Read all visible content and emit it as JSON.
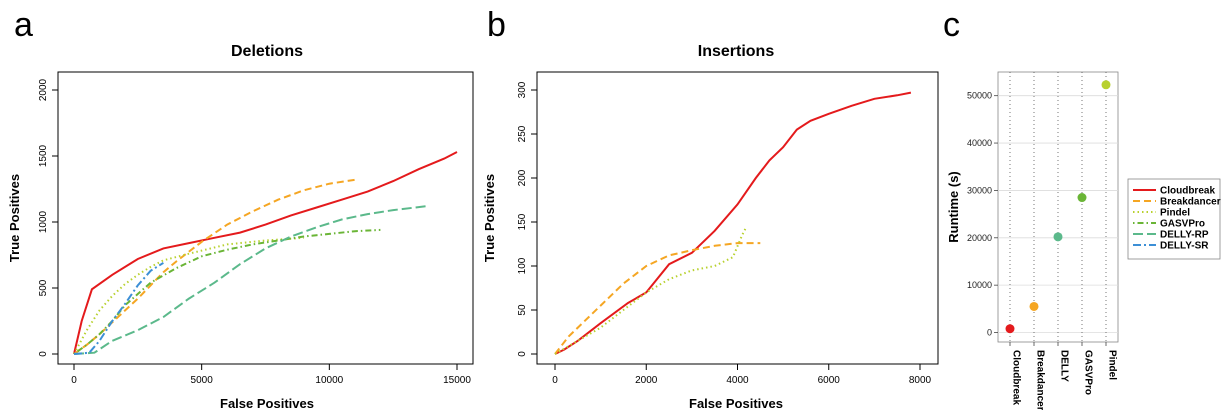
{
  "panels": {
    "a": "a",
    "b": "b",
    "c": "c"
  },
  "legend": {
    "entries": [
      {
        "name": "Cloudbreak",
        "color": "#e41a1c",
        "dash": "solid"
      },
      {
        "name": "Breakdancer",
        "color": "#f5a623",
        "dash": "dashed"
      },
      {
        "name": "Pindel",
        "color": "#b8d12e",
        "dash": "dotted"
      },
      {
        "name": "GASVPro",
        "color": "#6ab536",
        "dash": "dotdash"
      },
      {
        "name": "DELLY-RP",
        "color": "#5bb98b",
        "dash": "longdash"
      },
      {
        "name": "DELLY-SR",
        "color": "#3c8fd6",
        "dash": "twodash"
      }
    ]
  },
  "chart_data": [
    {
      "type": "line",
      "title": "Deletions",
      "xlabel": "False Positives",
      "ylabel": "True Positives",
      "xlim": [
        0,
        15000
      ],
      "ylim": [
        0,
        2000
      ],
      "xticks": [
        0,
        5000,
        10000,
        15000
      ],
      "yticks": [
        0,
        500,
        1000,
        1500,
        2000
      ],
      "series": [
        {
          "name": "Cloudbreak",
          "x": [
            0,
            300,
            700,
            1500,
            2500,
            3500,
            4500,
            5500,
            6500,
            7500,
            8500,
            9500,
            10500,
            11500,
            12500,
            13500,
            14500,
            15000
          ],
          "y": [
            0,
            250,
            490,
            600,
            720,
            800,
            840,
            880,
            920,
            980,
            1050,
            1110,
            1170,
            1230,
            1310,
            1400,
            1480,
            1530
          ]
        },
        {
          "name": "Breakdancer",
          "x": [
            0,
            500,
            1000,
            1500,
            2000,
            2500,
            3000,
            3500,
            4000,
            5000,
            6000,
            7000,
            8000,
            9000,
            10000,
            11000
          ],
          "y": [
            0,
            70,
            150,
            240,
            330,
            420,
            520,
            620,
            700,
            850,
            980,
            1080,
            1170,
            1240,
            1290,
            1320
          ]
        },
        {
          "name": "Pindel",
          "x": [
            0,
            500,
            1000,
            1500,
            2000,
            2500,
            3000,
            3500,
            4500,
            6000,
            7500,
            9000
          ],
          "y": [
            0,
            180,
            330,
            440,
            530,
            600,
            660,
            710,
            760,
            830,
            860,
            880
          ]
        },
        {
          "name": "GASVPro",
          "x": [
            0,
            500,
            1000,
            1500,
            2000,
            3000,
            4000,
            5000,
            6000,
            7000,
            8000,
            9000,
            10000,
            11000,
            12000
          ],
          "y": [
            0,
            70,
            150,
            250,
            370,
            540,
            650,
            740,
            790,
            830,
            860,
            890,
            910,
            930,
            940
          ]
        },
        {
          "name": "DELLY-RP",
          "x": [
            0,
            800,
            1500,
            2500,
            3500,
            4500,
            5500,
            6500,
            7500,
            8500,
            9500,
            10500,
            11500,
            12500,
            13800
          ],
          "y": [
            0,
            10,
            100,
            180,
            280,
            420,
            540,
            680,
            800,
            890,
            960,
            1020,
            1060,
            1090,
            1120
          ]
        },
        {
          "name": "DELLY-SR",
          "x": [
            0,
            600,
            1000,
            1500,
            2000,
            2500,
            3000,
            3500
          ],
          "y": [
            0,
            10,
            100,
            250,
            380,
            520,
            630,
            690
          ]
        }
      ]
    },
    {
      "type": "line",
      "title": "Insertions",
      "xlabel": "False Positives",
      "ylabel": "True Positives",
      "xlim": [
        0,
        8000
      ],
      "ylim": [
        0,
        300
      ],
      "xticks": [
        0,
        2000,
        4000,
        6000,
        8000
      ],
      "yticks": [
        0,
        50,
        100,
        150,
        200,
        250,
        300
      ],
      "series": [
        {
          "name": "Cloudbreak",
          "x": [
            0,
            200,
            500,
            1000,
            1600,
            2000,
            2500,
            3000,
            3500,
            4000,
            4400,
            4700,
            5000,
            5300,
            5600,
            6000,
            6500,
            7000,
            7500,
            7800
          ],
          "y": [
            0,
            5,
            15,
            35,
            58,
            70,
            102,
            115,
            140,
            170,
            200,
            220,
            235,
            255,
            265,
            273,
            282,
            290,
            294,
            297
          ]
        },
        {
          "name": "Breakdancer",
          "x": [
            0,
            300,
            600,
            1000,
            1500,
            2000,
            2500,
            3000,
            3500,
            4000,
            4500
          ],
          "y": [
            0,
            20,
            35,
            55,
            80,
            100,
            112,
            118,
            123,
            126,
            126
          ]
        },
        {
          "name": "Pindel",
          "x": [
            0,
            500,
            1000,
            1500,
            2000,
            2500,
            3000,
            3500,
            3900,
            4100,
            4200
          ],
          "y": [
            0,
            15,
            30,
            50,
            70,
            85,
            95,
            100,
            110,
            135,
            145
          ]
        }
      ]
    },
    {
      "type": "scatter",
      "title": "",
      "xlabel": "",
      "ylabel": "Runtime (s)",
      "ylim": [
        -2000,
        55000
      ],
      "yticks": [
        0,
        10000,
        20000,
        30000,
        40000,
        50000
      ],
      "categories": [
        "Cloudbreak",
        "Breakdancer",
        "DELLY",
        "GASVPro",
        "Pindel"
      ],
      "values": [
        800,
        5500,
        20200,
        28500,
        52300
      ],
      "colors": [
        "#e41a1c",
        "#f5a623",
        "#5bb98b",
        "#6ab536",
        "#b8d12e"
      ]
    }
  ]
}
